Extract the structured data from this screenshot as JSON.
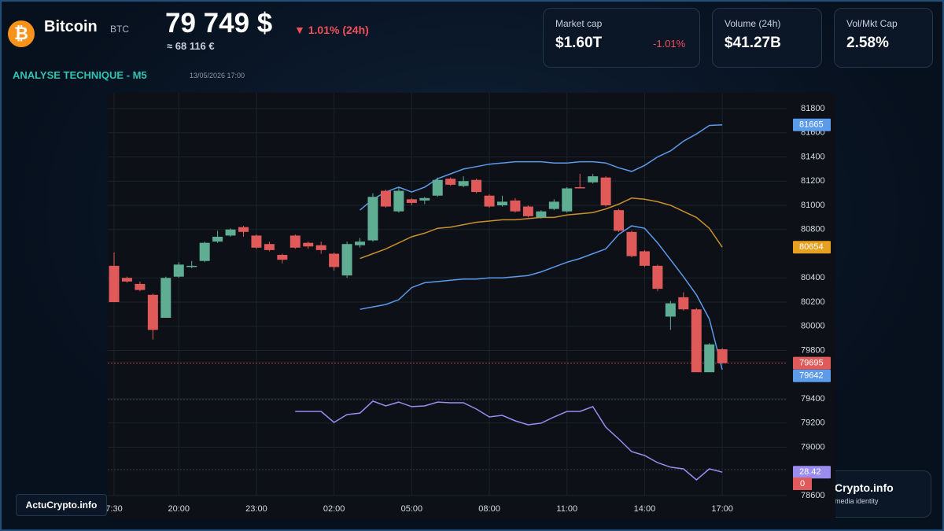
{
  "header": {
    "name": "Bitcoin",
    "symbol": "BTC",
    "price": "79 749 $",
    "change": "▼ 1.01% (24h)",
    "price_eur": "≈ 68 116 €",
    "section": "ANALYSE TECHNIQUE - M5",
    "timestamp": "13/05/2026 17:00"
  },
  "stats": [
    {
      "label": "Market cap",
      "value": "$1.60T",
      "change": "-1.01%"
    },
    {
      "label": "Volume (24h)",
      "value": "$41.27B"
    },
    {
      "label": "Vol/Mkt Cap",
      "value": "2.58%"
    }
  ],
  "footer": {
    "left": "ActuCrypto.info",
    "right_title": "Crypto.info",
    "right_sub": "media identity"
  },
  "chart_data": {
    "type": "candlestick",
    "categories": [
      "7:30",
      null,
      null,
      null,
      null,
      "20:00",
      null,
      null,
      null,
      null,
      null,
      "23:00",
      null,
      null,
      null,
      null,
      null,
      "02:00",
      null,
      null,
      null,
      null,
      null,
      "05:00",
      null,
      null,
      null,
      null,
      null,
      "08:00",
      null,
      null,
      null,
      null,
      null,
      "11:00",
      null,
      null,
      null,
      null,
      null,
      "14:00",
      null,
      null,
      null,
      null,
      null,
      "17:00"
    ],
    "open": [
      80500,
      80400,
      80350,
      80260,
      80070,
      80410,
      80490,
      80540,
      80700,
      80750,
      80820,
      80750,
      80680,
      80590,
      80750,
      80690,
      80670,
      80600,
      80420,
      80670,
      80710,
      81120,
      80950,
      81050,
      81040,
      81080,
      81220,
      81160,
      81210,
      81080,
      81000,
      81040,
      80990,
      80900,
      80970,
      80950,
      81150,
      81190,
      81230,
      80960,
      80780,
      80620,
      80500,
      80080,
      80240,
      80140,
      79620,
      79810
    ],
    "high": [
      80610,
      80410,
      80370,
      80270,
      80410,
      80530,
      80540,
      80700,
      80790,
      80810,
      80830,
      80760,
      80700,
      80600,
      80760,
      80700,
      80700,
      80610,
      80700,
      80730,
      81100,
      81130,
      81150,
      81060,
      81070,
      81230,
      81230,
      81240,
      81220,
      81090,
      81080,
      81060,
      81000,
      80960,
      81050,
      81150,
      81260,
      81260,
      81240,
      80970,
      80790,
      80630,
      80510,
      80210,
      80280,
      80150,
      79860,
      79820
    ],
    "low": [
      80200,
      80360,
      80290,
      79890,
      80070,
      80400,
      80480,
      80530,
      80690,
      80740,
      80740,
      80640,
      80620,
      80520,
      80640,
      80640,
      80600,
      80460,
      80400,
      80650,
      80700,
      80980,
      80940,
      81000,
      81010,
      81070,
      81160,
      81150,
      81100,
      80980,
      80990,
      80940,
      80900,
      80890,
      80960,
      80940,
      81140,
      81180,
      80990,
      80780,
      80570,
      80490,
      80290,
      79970,
      80130,
      79620,
      79620,
      79690
    ],
    "close": [
      80200,
      80370,
      80300,
      79970,
      80400,
      80510,
      80500,
      80690,
      80740,
      80800,
      80780,
      80650,
      80630,
      80550,
      80650,
      80660,
      80630,
      80490,
      80680,
      80700,
      81070,
      80990,
      81120,
      81020,
      81060,
      81210,
      81170,
      81200,
      81110,
      80990,
      81030,
      80950,
      80910,
      80950,
      81030,
      81140,
      81140,
      81240,
      81000,
      80790,
      80580,
      80500,
      80310,
      80190,
      80140,
      79620,
      79850,
      79695
    ],
    "up_color": "#5fae94",
    "down_color": "#e05a5a",
    "ylim": [
      78600,
      81800
    ],
    "yticks": [
      81800,
      81600,
      81400,
      81200,
      81000,
      80800,
      80400,
      80200,
      80000,
      79800,
      79400,
      79200,
      79000,
      78600
    ],
    "y2lim": [
      0,
      100
    ],
    "grid": true,
    "series": [
      {
        "color": "#5b9bea",
        "values": [
          null,
          null,
          null,
          null,
          null,
          null,
          null,
          null,
          null,
          null,
          null,
          null,
          null,
          null,
          null,
          null,
          null,
          null,
          null,
          80960,
          81050,
          81110,
          81150,
          81110,
          81150,
          81220,
          81260,
          81300,
          81320,
          81340,
          81350,
          81360,
          81360,
          81360,
          81350,
          81350,
          81360,
          81360,
          81350,
          81310,
          81280,
          81330,
          81400,
          81450,
          81530,
          81590,
          81660,
          81665
        ]
      },
      {
        "color": "#c8902e",
        "values": [
          null,
          null,
          null,
          null,
          null,
          null,
          null,
          null,
          null,
          null,
          null,
          null,
          null,
          null,
          null,
          null,
          null,
          null,
          null,
          80560,
          80600,
          80640,
          80690,
          80740,
          80770,
          80810,
          80820,
          80840,
          80860,
          80870,
          80880,
          80880,
          80890,
          80900,
          80900,
          80920,
          80930,
          80940,
          80970,
          81010,
          81060,
          81050,
          81030,
          81000,
          80950,
          80900,
          80810,
          80654
        ]
      },
      {
        "color": "#5b9bea",
        "values": [
          null,
          null,
          null,
          null,
          null,
          null,
          null,
          null,
          null,
          null,
          null,
          null,
          null,
          null,
          null,
          null,
          null,
          null,
          null,
          80140,
          80160,
          80180,
          80220,
          80320,
          80360,
          80370,
          80380,
          80390,
          80390,
          80400,
          80400,
          80410,
          80420,
          80450,
          80490,
          80530,
          80560,
          80600,
          80640,
          80760,
          80830,
          80810,
          80690,
          80550,
          80410,
          80260,
          80060,
          79642
        ]
      },
      {
        "color": "#9b8cf0",
        "axis": "y2",
        "values": [
          null,
          null,
          null,
          null,
          null,
          null,
          null,
          null,
          null,
          null,
          null,
          null,
          null,
          null,
          83.6,
          83.6,
          83.6,
          73.6,
          80.7,
          82.1,
          92.9,
          88.6,
          92.1,
          87.9,
          88.6,
          92.1,
          91.4,
          91.4,
          85.7,
          78.6,
          80.0,
          75.0,
          71.4,
          72.9,
          78.6,
          83.6,
          83.6,
          87.9,
          69.3,
          58.6,
          47.1,
          43.6,
          37.1,
          32.9,
          31.4,
          21.4,
          31.4,
          28.42
        ]
      }
    ],
    "volume_label": 0
  }
}
